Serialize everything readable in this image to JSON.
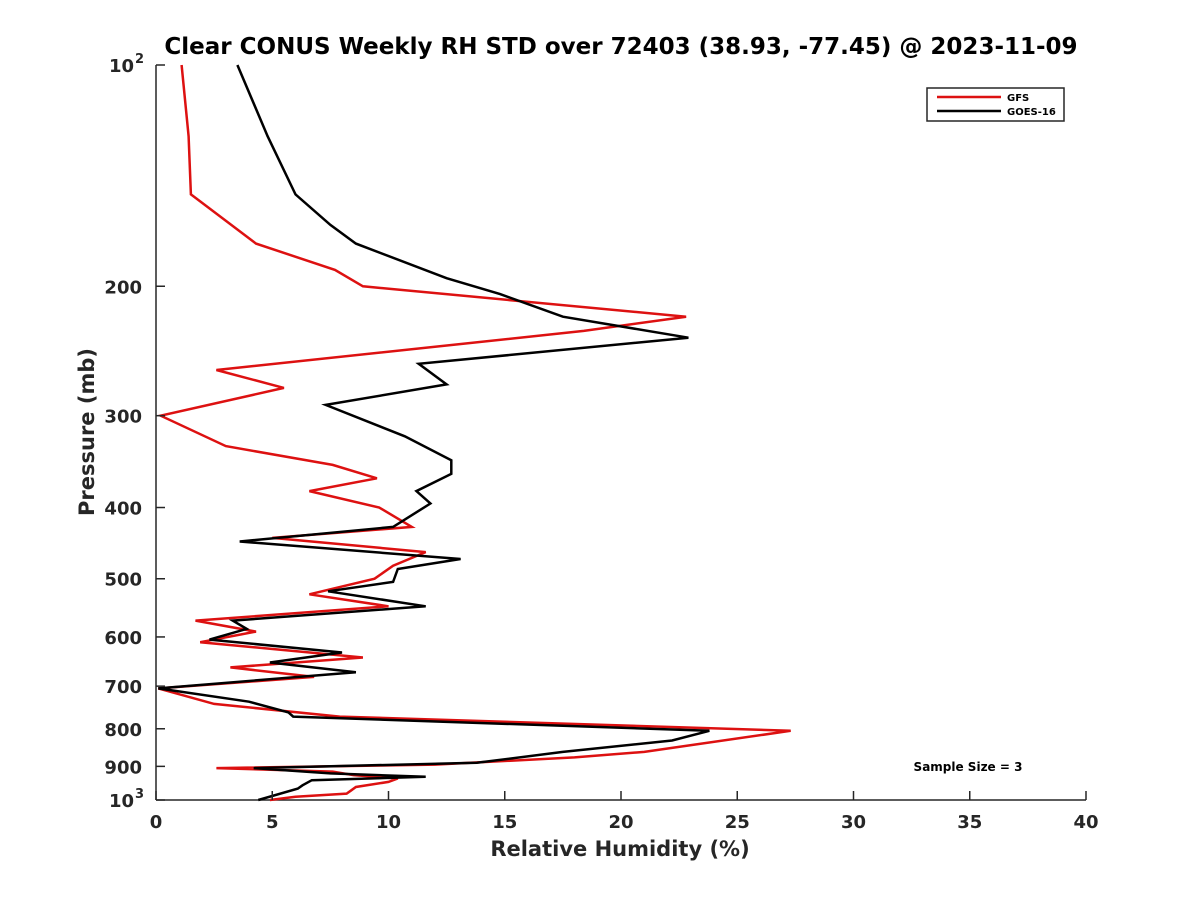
{
  "chart_data": {
    "type": "line",
    "title": "Clear CONUS Weekly RH STD over 72403 (38.93, -77.45) @ 2023-11-09",
    "xlabel": "Relative Humidity (%)",
    "ylabel": "Pressure (mb)",
    "xlim": [
      0,
      40
    ],
    "ylim": [
      100,
      1000
    ],
    "y_scale": "log",
    "y_reversed": true,
    "x_ticks": [
      0,
      5,
      10,
      15,
      20,
      25,
      30,
      35,
      40
    ],
    "y_ticks": [
      {
        "value": 100,
        "label": "10",
        "sup": "2"
      },
      {
        "value": 200,
        "label": "200"
      },
      {
        "value": 300,
        "label": "300"
      },
      {
        "value": 400,
        "label": "400"
      },
      {
        "value": 500,
        "label": "500"
      },
      {
        "value": 600,
        "label": "600"
      },
      {
        "value": 700,
        "label": "700"
      },
      {
        "value": 800,
        "label": "800"
      },
      {
        "value": 900,
        "label": "900"
      },
      {
        "value": 1000,
        "label": "10",
        "sup": "3"
      }
    ],
    "grid": false,
    "legend_position": "top-right",
    "series": [
      {
        "name": "GFS",
        "color": "#dd1111",
        "points": [
          [
            1.1,
            100
          ],
          [
            1.4,
            125
          ],
          [
            1.5,
            150
          ],
          [
            4.3,
            175
          ],
          [
            7.7,
            190
          ],
          [
            8.9,
            200
          ],
          [
            22.8,
            220
          ],
          [
            18.4,
            230
          ],
          [
            2.6,
            260
          ],
          [
            5.5,
            275
          ],
          [
            0.2,
            300
          ],
          [
            3.0,
            330
          ],
          [
            7.6,
            350
          ],
          [
            9.5,
            365
          ],
          [
            6.6,
            380
          ],
          [
            9.6,
            400
          ],
          [
            11.0,
            425
          ],
          [
            5.0,
            440
          ],
          [
            11.6,
            460
          ],
          [
            10.2,
            480
          ],
          [
            9.4,
            500
          ],
          [
            6.6,
            525
          ],
          [
            10.0,
            545
          ],
          [
            1.7,
            570
          ],
          [
            4.3,
            590
          ],
          [
            1.9,
            610
          ],
          [
            8.9,
            640
          ],
          [
            3.2,
            660
          ],
          [
            6.8,
            680
          ],
          [
            0.1,
            705
          ],
          [
            2.5,
            740
          ],
          [
            7.9,
            770
          ],
          [
            27.3,
            805
          ],
          [
            21.0,
            860
          ],
          [
            18.0,
            875
          ],
          [
            12.0,
            895
          ],
          [
            2.6,
            905
          ],
          [
            7.6,
            915
          ],
          [
            8.5,
            925
          ],
          [
            10.4,
            935
          ],
          [
            10.0,
            945
          ],
          [
            8.6,
            960
          ],
          [
            8.4,
            970
          ],
          [
            8.2,
            980
          ],
          [
            6.0,
            990
          ],
          [
            4.9,
            1000
          ]
        ]
      },
      {
        "name": "GOES-16",
        "color": "#000000",
        "points": [
          [
            3.5,
            100
          ],
          [
            4.8,
            125
          ],
          [
            6.0,
            150
          ],
          [
            7.5,
            165
          ],
          [
            8.6,
            175
          ],
          [
            12.5,
            195
          ],
          [
            14.8,
            205
          ],
          [
            17.5,
            220
          ],
          [
            22.9,
            235
          ],
          [
            11.3,
            255
          ],
          [
            12.5,
            272
          ],
          [
            7.3,
            290
          ],
          [
            10.7,
            320
          ],
          [
            12.7,
            345
          ],
          [
            12.7,
            360
          ],
          [
            11.2,
            380
          ],
          [
            11.8,
            395
          ],
          [
            10.2,
            425
          ],
          [
            3.6,
            445
          ],
          [
            13.1,
            470
          ],
          [
            10.4,
            485
          ],
          [
            10.2,
            505
          ],
          [
            7.4,
            520
          ],
          [
            11.6,
            545
          ],
          [
            3.3,
            570
          ],
          [
            3.9,
            585
          ],
          [
            2.3,
            605
          ],
          [
            8.0,
            630
          ],
          [
            4.9,
            650
          ],
          [
            8.6,
            670
          ],
          [
            0.1,
            705
          ],
          [
            4.0,
            735
          ],
          [
            5.7,
            760
          ],
          [
            5.9,
            770
          ],
          [
            23.8,
            805
          ],
          [
            22.2,
            830
          ],
          [
            17.5,
            860
          ],
          [
            13.8,
            890
          ],
          [
            4.2,
            905
          ],
          [
            7.5,
            920
          ],
          [
            11.6,
            930
          ],
          [
            6.7,
            940
          ],
          [
            6.3,
            955
          ],
          [
            6.1,
            965
          ],
          [
            4.4,
            1000
          ]
        ]
      }
    ],
    "annotation": "Sample Size = 3"
  }
}
